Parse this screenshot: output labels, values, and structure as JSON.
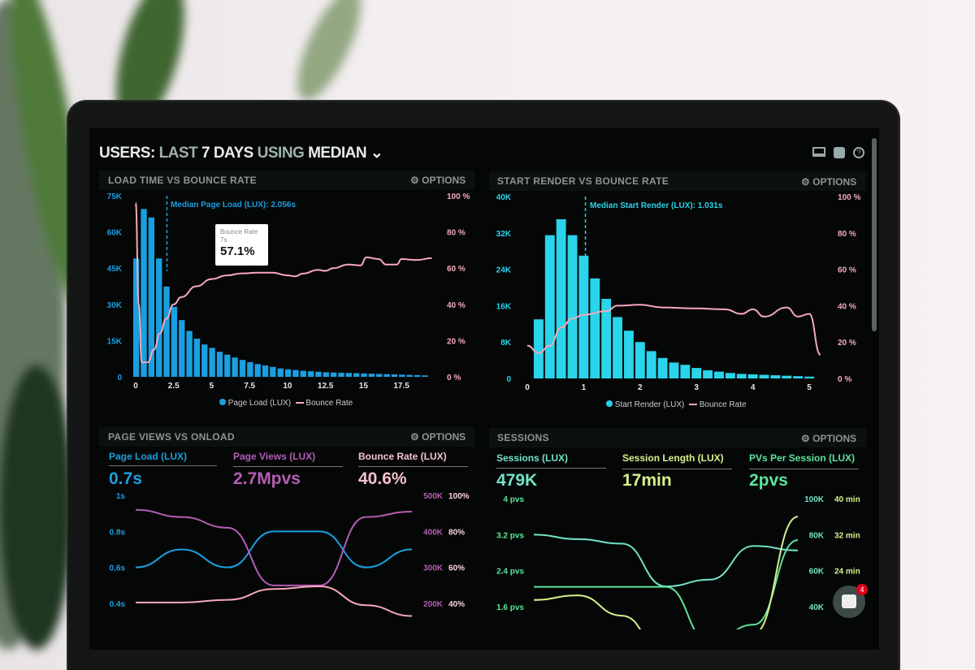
{
  "header": {
    "users": "USERS:",
    "last": "LAST",
    "days": "7 DAYS",
    "using": "USING",
    "median": "MEDIAN",
    "icons": [
      "monitor-icon",
      "share-icon",
      "help-icon"
    ]
  },
  "options_label": "OPTIONS",
  "colors": {
    "blue": "#1a9fe0",
    "cyan": "#2ad4ea",
    "pink": "#f5a8ba",
    "purple": "#b45db4",
    "teal": "#74e2c8",
    "green": "#5ee39c",
    "yellow": "#d8f08c"
  },
  "chat_badge": "4",
  "chart_data": [
    {
      "type": "bar+line",
      "title": "LOAD TIME VS BOUNCE RATE",
      "annotation": "Median Page Load (LUX): 2.056s",
      "median": 2.056,
      "tooltip": {
        "title": "Bounce Rate",
        "sub": "7s",
        "value": "57.1%"
      },
      "xlim": [
        0,
        20
      ],
      "xticks": [
        "0",
        "2.5",
        "5",
        "7.5",
        "10",
        "12.5",
        "15",
        "17.5"
      ],
      "ylim": [
        0,
        75000
      ],
      "yticks": [
        "0",
        "15K",
        "30K",
        "45K",
        "60K",
        "75K"
      ],
      "y2lim": [
        0,
        100
      ],
      "y2ticks": [
        "0 %",
        "20 %",
        "40 %",
        "60 %",
        "80 %",
        "100 %"
      ],
      "bar_width": 0.5,
      "series": [
        {
          "name": "Page Load (LUX)",
          "type": "bar",
          "x": [
            0,
            0.5,
            1,
            1.5,
            2,
            2.5,
            3,
            3.5,
            4,
            4.5,
            5,
            5.5,
            6,
            6.5,
            7,
            7.5,
            8,
            8.5,
            9,
            9.5,
            10,
            10.5,
            11,
            11.5,
            12,
            12.5,
            13,
            13.5,
            14,
            14.5,
            15,
            15.5,
            16,
            16.5,
            17,
            17.5,
            18,
            18.5,
            19
          ],
          "values": [
            49000,
            69500,
            66000,
            49000,
            37400,
            29000,
            23500,
            19000,
            15800,
            13400,
            12000,
            10400,
            9200,
            8000,
            7000,
            6100,
            5300,
            4700,
            4100,
            3500,
            3100,
            2800,
            2500,
            2300,
            2100,
            1900,
            1800,
            1700,
            1600,
            1500,
            1400,
            1300,
            1200,
            1100,
            1000,
            900,
            800,
            700,
            600
          ]
        },
        {
          "name": "Bounce Rate",
          "type": "line",
          "x": [
            0,
            0.2,
            0.4,
            0.8,
            1.2,
            1.6,
            2,
            2.5,
            3,
            4,
            5,
            6,
            7,
            8,
            9,
            10,
            10.5,
            11,
            12,
            12.5,
            13,
            14,
            14.8,
            15.2,
            16,
            16.5,
            17.2,
            17.5,
            18.5,
            19.5
          ],
          "values": [
            96,
            40,
            8,
            8,
            15,
            24,
            32,
            40,
            44,
            50,
            54,
            56,
            57.1,
            57.5,
            57.5,
            56,
            55.5,
            57,
            59,
            58.5,
            60,
            62,
            61.5,
            66,
            65,
            62,
            62,
            65,
            64.5,
            65.5
          ]
        }
      ],
      "legend": "bottom"
    },
    {
      "type": "bar+line",
      "title": "START RENDER VS BOUNCE RATE",
      "annotation": "Median Start Render (LUX): 1.031s",
      "median": 1.031,
      "xlim": [
        0,
        5.2
      ],
      "xticks": [
        "0",
        "1",
        "2",
        "3",
        "4",
        "5"
      ],
      "ylim": [
        0,
        40000
      ],
      "yticks": [
        "0",
        "8K",
        "16K",
        "24K",
        "32K",
        "40K"
      ],
      "y2lim": [
        0,
        100
      ],
      "y2ticks": [
        "0 %",
        "20 %",
        "40 %",
        "60 %",
        "80 %",
        "100 %"
      ],
      "bar_width": 0.2,
      "series": [
        {
          "name": "Start Render (LUX)",
          "type": "bar",
          "x": [
            0.2,
            0.4,
            0.6,
            0.8,
            1,
            1.2,
            1.4,
            1.6,
            1.8,
            2,
            2.2,
            2.4,
            2.6,
            2.8,
            3,
            3.2,
            3.4,
            3.6,
            3.8,
            4,
            4.2,
            4.4,
            4.6,
            4.8,
            5
          ],
          "values": [
            13000,
            31500,
            35000,
            31500,
            27000,
            22000,
            17500,
            13500,
            10500,
            8000,
            6000,
            4500,
            3500,
            3000,
            2300,
            1800,
            1500,
            1200,
            1000,
            900,
            800,
            700,
            600,
            500,
            400
          ]
        },
        {
          "name": "Bounce Rate",
          "type": "line",
          "x": [
            0,
            0.2,
            0.4,
            0.6,
            0.8,
            1,
            1.4,
            1.6,
            2,
            2.4,
            3,
            3.5,
            3.8,
            4,
            4.2,
            4.6,
            4.8,
            5,
            5.2
          ],
          "values": [
            18,
            14,
            18,
            28,
            33,
            35,
            37,
            40,
            40.5,
            39,
            38.5,
            38,
            35.5,
            38,
            34,
            39,
            34,
            35.5,
            13
          ]
        }
      ],
      "legend": "bottom"
    },
    {
      "type": "line",
      "title": "PAGE VIEWS VS ONLOAD",
      "kpis": [
        {
          "label": "Page Load (LUX)",
          "value": "0.7s"
        },
        {
          "label": "Page Views (LUX)",
          "value": "2.7Mpvs"
        },
        {
          "label": "Bounce Rate (LUX)",
          "value": "40.6%"
        }
      ],
      "yticks": [
        "0.4s",
        "0.6s",
        "0.8s",
        "1s"
      ],
      "ylim": [
        0.4,
        1.0
      ],
      "y2ticks": [
        "200K",
        "300K",
        "400K",
        "500K"
      ],
      "y2lim": [
        200000,
        500000
      ],
      "y3ticks": [
        "40%",
        "60%",
        "80%",
        "100%"
      ],
      "y3lim": [
        40,
        100
      ],
      "series": [
        {
          "axis": "y",
          "values": [
            0.6,
            0.7,
            0.6,
            0.8,
            0.8,
            0.6,
            0.7
          ]
        },
        {
          "axis": "y2",
          "values": [
            460000,
            440000,
            410000,
            250000,
            250000,
            440000,
            455000
          ]
        },
        {
          "axis": "y3",
          "values": [
            40.5,
            40.5,
            42,
            48,
            49.5,
            39,
            33
          ]
        }
      ]
    },
    {
      "type": "line",
      "title": "SESSIONS",
      "kpis": [
        {
          "label": "Sessions (LUX)",
          "value": "479K"
        },
        {
          "label": "Session Length (LUX)",
          "value": "17min"
        },
        {
          "label": "PVs Per Session (LUX)",
          "value": "2pvs"
        }
      ],
      "yticks": [
        "1.6 pvs",
        "2.4 pvs",
        "3.2 pvs",
        "4 pvs"
      ],
      "ylim": [
        1.6,
        4
      ],
      "y2ticks": [
        "40K",
        "60K",
        "80K",
        "100K"
      ],
      "y2lim": [
        40000,
        100000
      ],
      "y3ticks": [
        "24 min",
        "32 min",
        "40 min"
      ],
      "y3lim": [
        16,
        40
      ],
      "series": [
        {
          "axis": "y",
          "values": [
            3.2,
            3.1,
            3.0,
            2.05,
            2.2,
            2.95,
            2.85
          ]
        },
        {
          "axis": "y2",
          "values": [
            51000,
            51000,
            51000,
            51000,
            20000,
            30000,
            77000
          ]
        },
        {
          "axis": "y3",
          "values": [
            17.5,
            18.5,
            14,
            5,
            5,
            10,
            36
          ]
        }
      ]
    }
  ]
}
